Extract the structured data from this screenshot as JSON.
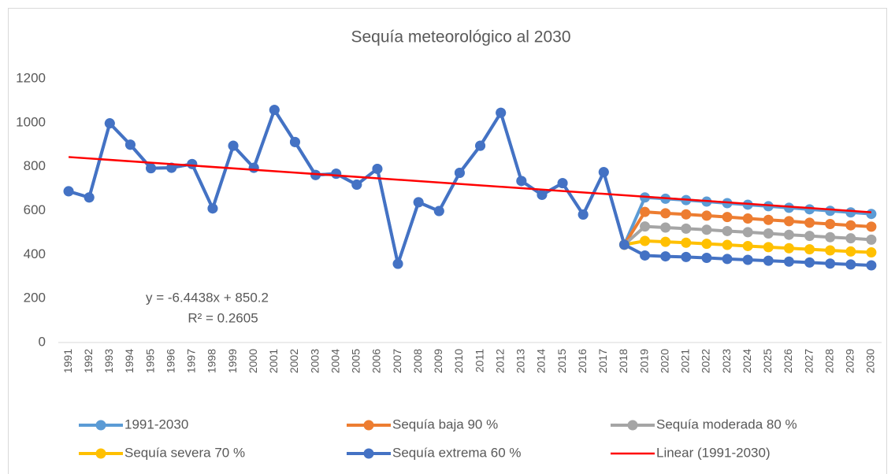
{
  "chart_data": {
    "type": "line",
    "title": "Sequía meteorológico al  2030",
    "categories": [
      "1991",
      "1992",
      "1993",
      "1994",
      "1995",
      "1996",
      "1997",
      "1998",
      "1999",
      "2000",
      "2001",
      "2002",
      "2003",
      "2004",
      "2005",
      "2006",
      "2007",
      "2008",
      "2009",
      "2010",
      "2011",
      "2012",
      "2013",
      "2014",
      "2015",
      "2016",
      "2017",
      "2018",
      "2019",
      "2020",
      "2021",
      "2022",
      "2023",
      "2024",
      "2025",
      "2026",
      "2027",
      "2028",
      "2029",
      "2030"
    ],
    "ylim": [
      0,
      1200
    ],
    "yticks": [
      0,
      200,
      400,
      600,
      800,
      1000,
      1200
    ],
    "grid": false,
    "legend": "bottom",
    "series": [
      {
        "name": "1991-2030",
        "color": "#5b9bd5",
        "values": [
          688,
          660,
          997,
          900,
          793,
          795,
          812,
          610,
          895,
          795,
          1058,
          912,
          762,
          768,
          718,
          790,
          358,
          638,
          598,
          772,
          895,
          1045,
          735,
          672,
          725,
          582,
          775,
          445,
          660,
          654,
          648,
          641,
          634,
          627,
          620,
          613,
          606,
          599,
          592,
          585
        ]
      },
      {
        "name": "Sequía baja 90 %",
        "color": "#ed7d31",
        "values": [
          null,
          null,
          null,
          null,
          null,
          null,
          null,
          null,
          null,
          null,
          null,
          null,
          null,
          null,
          null,
          null,
          null,
          null,
          null,
          null,
          null,
          null,
          null,
          null,
          null,
          null,
          null,
          445,
          594,
          588,
          583,
          577,
          571,
          564,
          558,
          552,
          545,
          539,
          533,
          527
        ]
      },
      {
        "name": "Sequía moderada  80 %",
        "color": "#a5a5a5",
        "values": [
          null,
          null,
          null,
          null,
          null,
          null,
          null,
          null,
          null,
          null,
          null,
          null,
          null,
          null,
          null,
          null,
          null,
          null,
          null,
          null,
          null,
          null,
          null,
          null,
          null,
          null,
          null,
          445,
          528,
          523,
          518,
          513,
          507,
          502,
          496,
          490,
          485,
          479,
          474,
          468
        ]
      },
      {
        "name": "Sequía severa 70 %",
        "color": "#ffc000",
        "values": [
          null,
          null,
          null,
          null,
          null,
          null,
          null,
          null,
          null,
          null,
          null,
          null,
          null,
          null,
          null,
          null,
          null,
          null,
          null,
          null,
          null,
          null,
          null,
          null,
          null,
          null,
          null,
          445,
          462,
          458,
          454,
          449,
          444,
          439,
          434,
          429,
          424,
          419,
          414,
          410
        ]
      },
      {
        "name": "Sequía extrema  60 %",
        "color": "#4472c4",
        "values": [
          688,
          660,
          997,
          900,
          793,
          795,
          812,
          610,
          895,
          795,
          1058,
          912,
          762,
          768,
          718,
          790,
          358,
          638,
          598,
          772,
          895,
          1045,
          735,
          672,
          725,
          582,
          775,
          445,
          396,
          392,
          389,
          385,
          380,
          376,
          372,
          368,
          364,
          359,
          355,
          351
        ]
      }
    ],
    "trendline": {
      "name": "Linear (1991-2030)",
      "color": "#ff0000",
      "start": 843.8,
      "end": 592.4
    },
    "annotations": [
      "y = -6.4438x + 850.2",
      "R² = 0.2605"
    ]
  }
}
